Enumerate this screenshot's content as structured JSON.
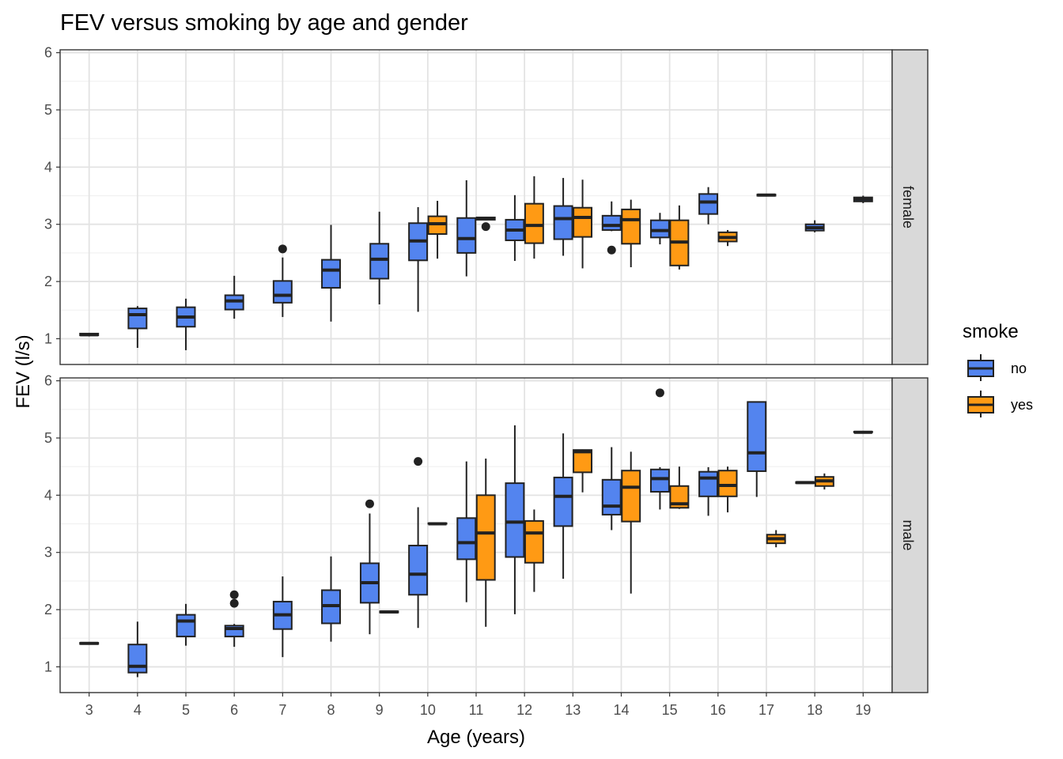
{
  "chart_data": {
    "type": "boxplot",
    "title": "FEV versus smoking by age and gender",
    "xlabel": "Age (years)",
    "ylabel": "FEV (l/s)",
    "ylim": [
      0.55,
      6.05
    ],
    "yticks": [
      1,
      2,
      3,
      4,
      5,
      6
    ],
    "categories": [
      "3",
      "4",
      "5",
      "6",
      "7",
      "8",
      "9",
      "10",
      "11",
      "12",
      "13",
      "14",
      "15",
      "16",
      "17",
      "18",
      "19"
    ],
    "grid": true,
    "legend": {
      "title": "smoke",
      "position": "right",
      "entries": [
        {
          "label": "no",
          "color": "#5384ef"
        },
        {
          "label": "yes",
          "color": "#ff9a14"
        }
      ]
    },
    "panels": [
      {
        "strip": "female",
        "boxes": [
          {
            "age": "3",
            "smoke": "no",
            "min": 1.04,
            "q1": 1.06,
            "median": 1.07,
            "q3": 1.09,
            "max": 1.1,
            "outliers": []
          },
          {
            "age": "4",
            "smoke": "no",
            "min": 0.84,
            "q1": 1.18,
            "median": 1.42,
            "q3": 1.53,
            "max": 1.57,
            "outliers": []
          },
          {
            "age": "5",
            "smoke": "no",
            "min": 0.8,
            "q1": 1.21,
            "median": 1.38,
            "q3": 1.55,
            "max": 1.7,
            "outliers": []
          },
          {
            "age": "6",
            "smoke": "no",
            "min": 1.35,
            "q1": 1.51,
            "median": 1.66,
            "q3": 1.76,
            "max": 2.1,
            "outliers": []
          },
          {
            "age": "7",
            "smoke": "no",
            "min": 1.38,
            "q1": 1.63,
            "median": 1.76,
            "q3": 2.01,
            "max": 2.42,
            "outliers": [
              2.57
            ]
          },
          {
            "age": "8",
            "smoke": "no",
            "min": 1.3,
            "q1": 1.89,
            "median": 2.2,
            "q3": 2.38,
            "max": 2.99,
            "outliers": []
          },
          {
            "age": "9",
            "smoke": "no",
            "min": 1.6,
            "q1": 2.05,
            "median": 2.39,
            "q3": 2.66,
            "max": 3.22,
            "outliers": []
          },
          {
            "age": "10",
            "smoke": "no",
            "min": 1.47,
            "q1": 2.37,
            "median": 2.71,
            "q3": 3.02,
            "max": 3.3,
            "outliers": []
          },
          {
            "age": "10",
            "smoke": "yes",
            "min": 2.4,
            "q1": 2.83,
            "median": 3.01,
            "q3": 3.14,
            "max": 3.41,
            "outliers": []
          },
          {
            "age": "11",
            "smoke": "no",
            "min": 2.09,
            "q1": 2.5,
            "median": 2.75,
            "q3": 3.11,
            "max": 3.77,
            "outliers": []
          },
          {
            "age": "11",
            "smoke": "yes",
            "min": 3.07,
            "q1": 3.08,
            "median": 3.1,
            "q3": 3.12,
            "max": 3.13,
            "outliers": [
              2.96
            ]
          },
          {
            "age": "12",
            "smoke": "no",
            "min": 2.36,
            "q1": 2.72,
            "median": 2.9,
            "q3": 3.08,
            "max": 3.51,
            "outliers": []
          },
          {
            "age": "12",
            "smoke": "yes",
            "min": 2.4,
            "q1": 2.67,
            "median": 2.98,
            "q3": 3.36,
            "max": 3.84,
            "outliers": []
          },
          {
            "age": "13",
            "smoke": "no",
            "min": 2.45,
            "q1": 2.74,
            "median": 3.1,
            "q3": 3.32,
            "max": 3.81,
            "outliers": []
          },
          {
            "age": "13",
            "smoke": "yes",
            "min": 2.23,
            "q1": 2.78,
            "median": 3.12,
            "q3": 3.29,
            "max": 3.78,
            "outliers": []
          },
          {
            "age": "14",
            "smoke": "no",
            "min": 2.88,
            "q1": 2.9,
            "median": 2.98,
            "q3": 3.15,
            "max": 3.4,
            "outliers": [
              2.55
            ]
          },
          {
            "age": "14",
            "smoke": "yes",
            "min": 2.25,
            "q1": 2.66,
            "median": 3.08,
            "q3": 3.26,
            "max": 3.43,
            "outliers": []
          },
          {
            "age": "15",
            "smoke": "no",
            "min": 2.65,
            "q1": 2.77,
            "median": 2.89,
            "q3": 3.07,
            "max": 3.2,
            "outliers": []
          },
          {
            "age": "15",
            "smoke": "yes",
            "min": 2.21,
            "q1": 2.28,
            "median": 2.69,
            "q3": 3.07,
            "max": 3.33,
            "outliers": []
          },
          {
            "age": "16",
            "smoke": "no",
            "min": 3.0,
            "q1": 3.18,
            "median": 3.39,
            "q3": 3.53,
            "max": 3.65,
            "outliers": []
          },
          {
            "age": "16",
            "smoke": "yes",
            "min": 2.62,
            "q1": 2.7,
            "median": 2.77,
            "q3": 2.86,
            "max": 2.9,
            "outliers": []
          },
          {
            "age": "17",
            "smoke": "no",
            "min": 3.49,
            "q1": 3.5,
            "median": 3.51,
            "q3": 3.52,
            "max": 3.53,
            "outliers": []
          },
          {
            "age": "18",
            "smoke": "no",
            "min": 2.86,
            "q1": 2.89,
            "median": 2.94,
            "q3": 3.0,
            "max": 3.07,
            "outliers": []
          },
          {
            "age": "19",
            "smoke": "no",
            "min": 3.37,
            "q1": 3.4,
            "median": 3.44,
            "q3": 3.47,
            "max": 3.5,
            "outliers": []
          }
        ]
      },
      {
        "strip": "male",
        "boxes": [
          {
            "age": "3",
            "smoke": "no",
            "min": 1.39,
            "q1": 1.4,
            "median": 1.41,
            "q3": 1.42,
            "max": 1.43,
            "outliers": []
          },
          {
            "age": "4",
            "smoke": "no",
            "min": 0.82,
            "q1": 0.9,
            "median": 1.01,
            "q3": 1.39,
            "max": 1.79,
            "outliers": []
          },
          {
            "age": "5",
            "smoke": "no",
            "min": 1.37,
            "q1": 1.53,
            "median": 1.8,
            "q3": 1.91,
            "max": 2.1,
            "outliers": []
          },
          {
            "age": "6",
            "smoke": "no",
            "min": 1.35,
            "q1": 1.53,
            "median": 1.67,
            "q3": 1.72,
            "max": 1.75,
            "outliers": [
              2.11,
              2.26
            ]
          },
          {
            "age": "7",
            "smoke": "no",
            "min": 1.17,
            "q1": 1.66,
            "median": 1.91,
            "q3": 2.14,
            "max": 2.58,
            "outliers": []
          },
          {
            "age": "8",
            "smoke": "no",
            "min": 1.44,
            "q1": 1.76,
            "median": 2.07,
            "q3": 2.34,
            "max": 2.93,
            "outliers": []
          },
          {
            "age": "9",
            "smoke": "no",
            "min": 1.57,
            "q1": 2.12,
            "median": 2.47,
            "q3": 2.81,
            "max": 3.68,
            "outliers": [
              3.85
            ]
          },
          {
            "age": "9",
            "smoke": "yes",
            "min": 1.94,
            "q1": 1.95,
            "median": 1.96,
            "q3": 1.97,
            "max": 1.98,
            "outliers": []
          },
          {
            "age": "10",
            "smoke": "no",
            "min": 1.68,
            "q1": 2.26,
            "median": 2.62,
            "q3": 3.12,
            "max": 3.79,
            "outliers": [
              4.59
            ]
          },
          {
            "age": "10",
            "smoke": "yes",
            "min": 3.49,
            "q1": 3.5,
            "median": 3.5,
            "q3": 3.51,
            "max": 3.52,
            "outliers": []
          },
          {
            "age": "11",
            "smoke": "no",
            "min": 2.13,
            "q1": 2.88,
            "median": 3.17,
            "q3": 3.6,
            "max": 4.59,
            "outliers": []
          },
          {
            "age": "11",
            "smoke": "yes",
            "min": 1.7,
            "q1": 2.52,
            "median": 3.34,
            "q3": 4.0,
            "max": 4.64,
            "outliers": []
          },
          {
            "age": "12",
            "smoke": "no",
            "min": 1.92,
            "q1": 2.92,
            "median": 3.53,
            "q3": 4.21,
            "max": 5.22,
            "outliers": []
          },
          {
            "age": "12",
            "smoke": "yes",
            "min": 2.31,
            "q1": 2.82,
            "median": 3.34,
            "q3": 3.55,
            "max": 3.75,
            "outliers": []
          },
          {
            "age": "13",
            "smoke": "no",
            "min": 2.54,
            "q1": 3.46,
            "median": 3.98,
            "q3": 4.31,
            "max": 5.08,
            "outliers": []
          },
          {
            "age": "13",
            "smoke": "yes",
            "min": 4.05,
            "q1": 4.4,
            "median": 4.76,
            "q3": 4.79,
            "max": 4.8,
            "outliers": []
          },
          {
            "age": "14",
            "smoke": "no",
            "min": 3.39,
            "q1": 3.66,
            "median": 3.81,
            "q3": 4.27,
            "max": 4.84,
            "outliers": []
          },
          {
            "age": "14",
            "smoke": "yes",
            "min": 2.28,
            "q1": 3.54,
            "median": 4.14,
            "q3": 4.43,
            "max": 4.76,
            "outliers": []
          },
          {
            "age": "15",
            "smoke": "no",
            "min": 3.75,
            "q1": 4.06,
            "median": 4.29,
            "q3": 4.45,
            "max": 4.49,
            "outliers": [
              5.79
            ]
          },
          {
            "age": "15",
            "smoke": "yes",
            "min": 3.76,
            "q1": 3.78,
            "median": 3.85,
            "q3": 4.16,
            "max": 4.5,
            "outliers": []
          },
          {
            "age": "16",
            "smoke": "no",
            "min": 3.64,
            "q1": 3.98,
            "median": 4.3,
            "q3": 4.41,
            "max": 4.49,
            "outliers": []
          },
          {
            "age": "16",
            "smoke": "yes",
            "min": 3.7,
            "q1": 3.98,
            "median": 4.17,
            "q3": 4.43,
            "max": 4.5,
            "outliers": []
          },
          {
            "age": "17",
            "smoke": "no",
            "min": 3.97,
            "q1": 4.42,
            "median": 4.74,
            "q3": 5.63,
            "max": 5.64,
            "outliers": []
          },
          {
            "age": "17",
            "smoke": "yes",
            "min": 3.09,
            "q1": 3.16,
            "median": 3.24,
            "q3": 3.31,
            "max": 3.39,
            "outliers": []
          },
          {
            "age": "18",
            "smoke": "no",
            "min": 4.2,
            "q1": 4.21,
            "median": 4.22,
            "q3": 4.23,
            "max": 4.24,
            "outliers": []
          },
          {
            "age": "18",
            "smoke": "yes",
            "min": 4.1,
            "q1": 4.16,
            "median": 4.25,
            "q3": 4.32,
            "max": 4.38,
            "outliers": []
          },
          {
            "age": "19",
            "smoke": "no",
            "min": 5.09,
            "q1": 5.1,
            "median": 5.1,
            "q3": 5.11,
            "max": 5.12,
            "outliers": []
          }
        ]
      }
    ]
  }
}
